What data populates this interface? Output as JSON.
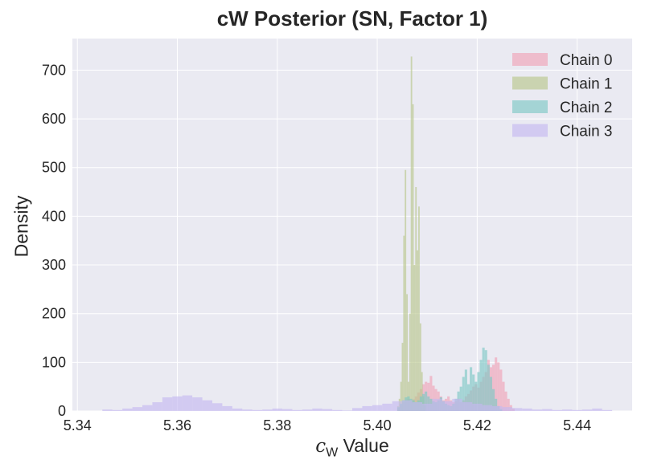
{
  "chart_data": {
    "type": "histogram",
    "title": "cW Posterior (SN, Factor 1)",
    "xlabel_symbol": "c",
    "xlabel_subscript": "W",
    "xlabel_suffix": " Value",
    "ylabel": "Density",
    "xlim": [
      5.339,
      5.451
    ],
    "ylim": [
      0,
      765
    ],
    "xticks": [
      5.34,
      5.36,
      5.38,
      5.4,
      5.42,
      5.44
    ],
    "xtick_labels": [
      "5.34",
      "5.36",
      "5.38",
      "5.40",
      "5.42",
      "5.44"
    ],
    "yticks": [
      0,
      100,
      200,
      300,
      400,
      500,
      600,
      700
    ],
    "ytick_labels": [
      "0",
      "100",
      "200",
      "300",
      "400",
      "500",
      "600",
      "700"
    ],
    "grid": true,
    "legend_position": "top-right",
    "series": [
      {
        "name": "Chain 0",
        "color": "#f0a3b7",
        "bins": [
          [
            5.404,
            5.4045,
            6
          ],
          [
            5.4045,
            5.405,
            12
          ],
          [
            5.405,
            5.4055,
            18
          ],
          [
            5.4055,
            5.406,
            22
          ],
          [
            5.406,
            5.4065,
            25
          ],
          [
            5.4065,
            5.407,
            20
          ],
          [
            5.407,
            5.4075,
            24
          ],
          [
            5.4075,
            5.408,
            30
          ],
          [
            5.408,
            5.4085,
            38
          ],
          [
            5.4085,
            5.409,
            45
          ],
          [
            5.409,
            5.4095,
            55
          ],
          [
            5.4095,
            5.41,
            60
          ],
          [
            5.41,
            5.4105,
            58
          ],
          [
            5.4105,
            5.411,
            72
          ],
          [
            5.411,
            5.4115,
            52
          ],
          [
            5.4115,
            5.412,
            45
          ],
          [
            5.412,
            5.4125,
            40
          ],
          [
            5.4125,
            5.413,
            30
          ],
          [
            5.413,
            5.4135,
            22
          ],
          [
            5.4135,
            5.414,
            25
          ],
          [
            5.414,
            5.4145,
            30
          ],
          [
            5.4145,
            5.415,
            22
          ],
          [
            5.415,
            5.4155,
            18
          ],
          [
            5.4155,
            5.416,
            20
          ],
          [
            5.416,
            5.4165,
            25
          ],
          [
            5.4165,
            5.417,
            18
          ],
          [
            5.417,
            5.4175,
            22
          ],
          [
            5.4175,
            5.418,
            30
          ],
          [
            5.418,
            5.4185,
            35
          ],
          [
            5.4185,
            5.419,
            42
          ],
          [
            5.419,
            5.4195,
            50
          ],
          [
            5.4195,
            5.42,
            55
          ],
          [
            5.42,
            5.4205,
            48
          ],
          [
            5.4205,
            5.421,
            60
          ],
          [
            5.421,
            5.4215,
            70
          ],
          [
            5.4215,
            5.422,
            80
          ],
          [
            5.422,
            5.4225,
            105
          ],
          [
            5.4225,
            5.423,
            90
          ],
          [
            5.423,
            5.4235,
            95
          ],
          [
            5.4235,
            5.424,
            110
          ],
          [
            5.424,
            5.4245,
            100
          ],
          [
            5.4245,
            5.425,
            85
          ],
          [
            5.425,
            5.4255,
            60
          ],
          [
            5.4255,
            5.426,
            40
          ],
          [
            5.426,
            5.4265,
            25
          ],
          [
            5.4265,
            5.427,
            12
          ],
          [
            5.427,
            5.4275,
            5
          ]
        ]
      },
      {
        "name": "Chain 1",
        "color": "#b8c68c",
        "bins": [
          [
            5.404,
            5.4043,
            10
          ],
          [
            5.4043,
            5.4046,
            25
          ],
          [
            5.4046,
            5.4049,
            60
          ],
          [
            5.4049,
            5.4052,
            140
          ],
          [
            5.4052,
            5.4055,
            360
          ],
          [
            5.4055,
            5.4058,
            495
          ],
          [
            5.4058,
            5.4061,
            240
          ],
          [
            5.4061,
            5.4064,
            60
          ],
          [
            5.4064,
            5.4067,
            200
          ],
          [
            5.4067,
            5.407,
            728
          ],
          [
            5.407,
            5.4073,
            630
          ],
          [
            5.4073,
            5.4076,
            300
          ],
          [
            5.4076,
            5.4079,
            460
          ],
          [
            5.4079,
            5.4082,
            330
          ],
          [
            5.4082,
            5.4085,
            420
          ],
          [
            5.4085,
            5.4088,
            180
          ],
          [
            5.4088,
            5.4091,
            80
          ],
          [
            5.4091,
            5.4094,
            30
          ],
          [
            5.4094,
            5.4097,
            12
          ]
        ]
      },
      {
        "name": "Chain 2",
        "color": "#7ec8c4",
        "bins": [
          [
            5.404,
            5.4045,
            8
          ],
          [
            5.4045,
            5.405,
            15
          ],
          [
            5.405,
            5.4055,
            22
          ],
          [
            5.4055,
            5.406,
            28
          ],
          [
            5.406,
            5.4065,
            30
          ],
          [
            5.4065,
            5.407,
            25
          ],
          [
            5.407,
            5.4075,
            22
          ],
          [
            5.4075,
            5.408,
            18
          ],
          [
            5.408,
            5.4085,
            22
          ],
          [
            5.4085,
            5.409,
            30
          ],
          [
            5.409,
            5.4095,
            35
          ],
          [
            5.4095,
            5.41,
            40
          ],
          [
            5.41,
            5.4105,
            30
          ],
          [
            5.4105,
            5.411,
            25
          ],
          [
            5.411,
            5.4115,
            20
          ],
          [
            5.4115,
            5.412,
            18
          ],
          [
            5.412,
            5.4125,
            22
          ],
          [
            5.4125,
            5.413,
            28
          ],
          [
            5.413,
            5.4135,
            20
          ],
          [
            5.4135,
            5.414,
            15
          ],
          [
            5.414,
            5.4145,
            12
          ],
          [
            5.4145,
            5.415,
            10
          ],
          [
            5.415,
            5.4155,
            15
          ],
          [
            5.4155,
            5.416,
            25
          ],
          [
            5.416,
            5.4165,
            40
          ],
          [
            5.4165,
            5.417,
            50
          ],
          [
            5.417,
            5.4175,
            70
          ],
          [
            5.4175,
            5.418,
            85
          ],
          [
            5.418,
            5.4185,
            55
          ],
          [
            5.4185,
            5.419,
            90
          ],
          [
            5.419,
            5.4195,
            75
          ],
          [
            5.4195,
            5.42,
            60
          ],
          [
            5.42,
            5.4205,
            80
          ],
          [
            5.4205,
            5.421,
            105
          ],
          [
            5.421,
            5.4215,
            130
          ],
          [
            5.4215,
            5.422,
            125
          ],
          [
            5.422,
            5.4225,
            95
          ],
          [
            5.4225,
            5.423,
            70
          ],
          [
            5.423,
            5.4235,
            45
          ],
          [
            5.4235,
            5.424,
            25
          ],
          [
            5.424,
            5.4245,
            10
          ],
          [
            5.4245,
            5.425,
            4
          ]
        ]
      },
      {
        "name": "Chain 3",
        "color": "#c5b8f0",
        "bins": [
          [
            5.345,
            5.347,
            3
          ],
          [
            5.347,
            5.349,
            2
          ],
          [
            5.349,
            5.351,
            5
          ],
          [
            5.351,
            5.353,
            8
          ],
          [
            5.353,
            5.355,
            12
          ],
          [
            5.355,
            5.357,
            18
          ],
          [
            5.357,
            5.359,
            28
          ],
          [
            5.359,
            5.361,
            30
          ],
          [
            5.361,
            5.363,
            32
          ],
          [
            5.363,
            5.365,
            28
          ],
          [
            5.365,
            5.367,
            22
          ],
          [
            5.367,
            5.369,
            16
          ],
          [
            5.369,
            5.371,
            10
          ],
          [
            5.371,
            5.373,
            5
          ],
          [
            5.373,
            5.375,
            3
          ],
          [
            5.375,
            5.377,
            2
          ],
          [
            5.377,
            5.379,
            3
          ],
          [
            5.379,
            5.381,
            5
          ],
          [
            5.381,
            5.383,
            4
          ],
          [
            5.383,
            5.385,
            2
          ],
          [
            5.385,
            5.387,
            3
          ],
          [
            5.387,
            5.389,
            5
          ],
          [
            5.389,
            5.391,
            4
          ],
          [
            5.391,
            5.393,
            2
          ],
          [
            5.393,
            5.395,
            1
          ],
          [
            5.395,
            5.397,
            6
          ],
          [
            5.397,
            5.399,
            10
          ],
          [
            5.399,
            5.401,
            12
          ],
          [
            5.401,
            5.403,
            15
          ],
          [
            5.403,
            5.405,
            20
          ],
          [
            5.405,
            5.407,
            22
          ],
          [
            5.407,
            5.409,
            18
          ],
          [
            5.409,
            5.411,
            15
          ],
          [
            5.411,
            5.413,
            25
          ],
          [
            5.413,
            5.415,
            20
          ],
          [
            5.415,
            5.417,
            25
          ],
          [
            5.417,
            5.419,
            18
          ],
          [
            5.419,
            5.421,
            15
          ],
          [
            5.421,
            5.423,
            12
          ],
          [
            5.423,
            5.425,
            10
          ],
          [
            5.425,
            5.427,
            8
          ],
          [
            5.427,
            5.429,
            6
          ],
          [
            5.429,
            5.431,
            5
          ],
          [
            5.431,
            5.433,
            3
          ],
          [
            5.433,
            5.435,
            4
          ],
          [
            5.435,
            5.437,
            2
          ],
          [
            5.437,
            5.439,
            3
          ],
          [
            5.439,
            5.441,
            2
          ],
          [
            5.441,
            5.443,
            3
          ],
          [
            5.443,
            5.445,
            5
          ],
          [
            5.445,
            5.447,
            2
          ]
        ]
      }
    ]
  }
}
